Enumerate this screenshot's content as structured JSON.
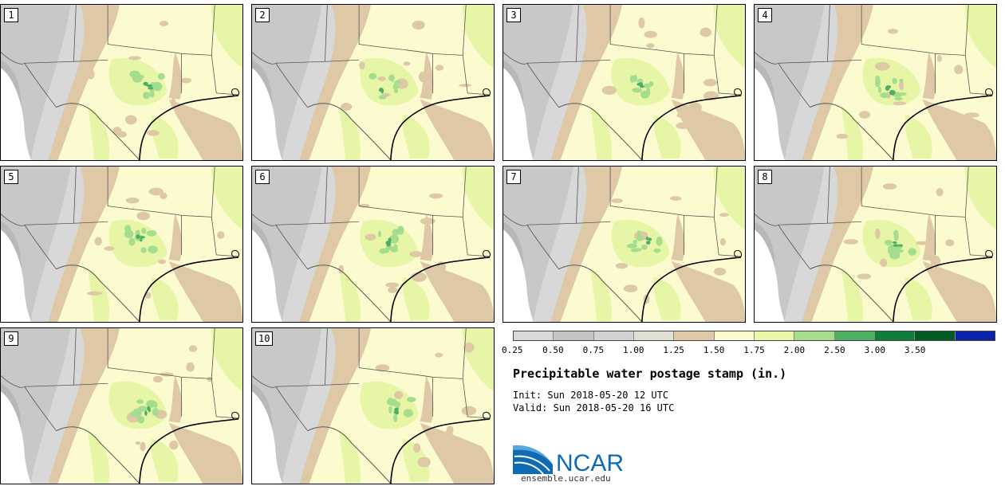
{
  "map": {
    "title": "Precipitable water postage stamp (in.)",
    "init_label": "Init:",
    "init_time": "Sun 2018-05-20 12 UTC",
    "valid_label": "Valid:",
    "valid_time": "Sun 2018-05-20 16 UTC",
    "stamps": [
      "1",
      "2",
      "3",
      "4",
      "5",
      "6",
      "7",
      "8",
      "9",
      "10"
    ],
    "colorbar": {
      "ticks": [
        "0.25",
        "0.50",
        "0.75",
        "1.00",
        "1.25",
        "1.50",
        "1.75",
        "2.00",
        "2.50",
        "3.00",
        "3.50"
      ],
      "colors": [
        "#d9d9d9",
        "#c4c4c4",
        "#d2d2d2",
        "#dfdfd6",
        "#dec8a6",
        "#fbfbcf",
        "#e8f8a8",
        "#a6dc8e",
        "#4caf62",
        "#0f7d3b",
        "#035a25",
        "#0a22a8"
      ]
    },
    "logo": {
      "text": "NCAR",
      "url": "ensemble.ucar.edu",
      "color": "#0e6bb4"
    }
  }
}
